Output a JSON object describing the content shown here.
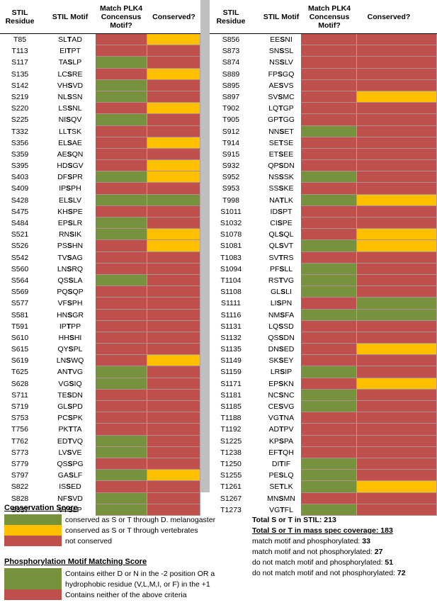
{
  "colors": {
    "green": "#76923c",
    "yellow": "#ffc000",
    "red": "#c0504d"
  },
  "headers": {
    "residue": "STIL Residue",
    "motif": "STIL Motif",
    "match": "Match PLK4 Concensus Motif?",
    "conserved": "Conserved?"
  },
  "left_rows": [
    {
      "r": "T85",
      "m": [
        "SL",
        "T",
        "AD"
      ],
      "a": "r",
      "b": "y"
    },
    {
      "r": "T113",
      "m": [
        "EI",
        "T",
        "PT"
      ],
      "a": "r",
      "b": "r"
    },
    {
      "r": "S117",
      "m": [
        "TA",
        "S",
        "LP"
      ],
      "a": "g",
      "b": "r"
    },
    {
      "r": "S135",
      "m": [
        "LC",
        "S",
        "RE"
      ],
      "a": "r",
      "b": "y"
    },
    {
      "r": "S142",
      "m": [
        "VH",
        "S",
        "VD"
      ],
      "a": "g",
      "b": "r"
    },
    {
      "r": "S219",
      "m": [
        "NL",
        "S",
        "SN"
      ],
      "a": "g",
      "b": "r"
    },
    {
      "r": "S220",
      "m": [
        "LS",
        "S",
        "NL"
      ],
      "a": "r",
      "b": "y"
    },
    {
      "r": "S225",
      "m": [
        "NI",
        "S",
        "QV"
      ],
      "a": "g",
      "b": "r"
    },
    {
      "r": "T332",
      "m": [
        "LL",
        "T",
        "SK"
      ],
      "a": "r",
      "b": "r"
    },
    {
      "r": "S356",
      "m": [
        "EL",
        "S",
        "AE"
      ],
      "a": "r",
      "b": "y"
    },
    {
      "r": "S359",
      "m": [
        "AE",
        "S",
        "QN"
      ],
      "a": "r",
      "b": "r"
    },
    {
      "r": "S395",
      "m": [
        "HD",
        "S",
        "GV"
      ],
      "a": "r",
      "b": "y"
    },
    {
      "r": "S403",
      "m": [
        "DF",
        "S",
        "PR"
      ],
      "a": "g",
      "b": "y"
    },
    {
      "r": "S409",
      "m": [
        "IP",
        "S",
        "PH"
      ],
      "a": "r",
      "b": "r"
    },
    {
      "r": "S428",
      "m": [
        "EL",
        "S",
        "LV"
      ],
      "a": "g",
      "b": "g"
    },
    {
      "r": "S475",
      "m": [
        "KH",
        "S",
        "PE"
      ],
      "a": "r",
      "b": "r"
    },
    {
      "r": "S484",
      "m": [
        "EP",
        "S",
        "LR"
      ],
      "a": "g",
      "b": "r"
    },
    {
      "r": "S521",
      "m": [
        "RN",
        "S",
        "IK"
      ],
      "a": "g",
      "b": "y"
    },
    {
      "r": "S526",
      "m": [
        "PS",
        "S",
        "HN"
      ],
      "a": "r",
      "b": "y"
    },
    {
      "r": "S542",
      "m": [
        "TV",
        "S",
        "AG"
      ],
      "a": "r",
      "b": "r"
    },
    {
      "r": "S560",
      "m": [
        "LN",
        "S",
        "RQ"
      ],
      "a": "r",
      "b": "r"
    },
    {
      "r": "S564",
      "m": [
        "QS",
        "S",
        "LA"
      ],
      "a": "g",
      "b": "r"
    },
    {
      "r": "S569",
      "m": [
        "PQ",
        "S",
        "QP"
      ],
      "a": "r",
      "b": "r"
    },
    {
      "r": "S577",
      "m": [
        "VF",
        "S",
        "PH"
      ],
      "a": "r",
      "b": "r"
    },
    {
      "r": "S581",
      "m": [
        "HN",
        "S",
        "GR"
      ],
      "a": "r",
      "b": "r"
    },
    {
      "r": "T591",
      "m": [
        "IP",
        "T",
        "PP"
      ],
      "a": "r",
      "b": "r"
    },
    {
      "r": "S610",
      "m": [
        "HH",
        "S",
        "HI"
      ],
      "a": "r",
      "b": "r"
    },
    {
      "r": "S615",
      "m": [
        "QY",
        "S",
        "PL"
      ],
      "a": "r",
      "b": "r"
    },
    {
      "r": "S619",
      "m": [
        "LN",
        "S",
        "WQ"
      ],
      "a": "r",
      "b": "y"
    },
    {
      "r": "T625",
      "m": [
        "AN",
        "T",
        "VG"
      ],
      "a": "g",
      "b": "r"
    },
    {
      "r": "S628",
      "m": [
        "VG",
        "S",
        "IQ"
      ],
      "a": "g",
      "b": "r"
    },
    {
      "r": "S711",
      "m": [
        "TE",
        "S",
        "DN"
      ],
      "a": "r",
      "b": "r"
    },
    {
      "r": "S719",
      "m": [
        "GL",
        "S",
        "PD"
      ],
      "a": "r",
      "b": "r"
    },
    {
      "r": "S753",
      "m": [
        "PC",
        "S",
        "PK"
      ],
      "a": "r",
      "b": "r"
    },
    {
      "r": "T756",
      "m": [
        "PK",
        "T",
        "TA"
      ],
      "a": "r",
      "b": "r"
    },
    {
      "r": "T762",
      "m": [
        "ED",
        "T",
        "VQ"
      ],
      "a": "g",
      "b": "r"
    },
    {
      "r": "S773",
      "m": [
        "LV",
        "S",
        "VE"
      ],
      "a": "g",
      "b": "r"
    },
    {
      "r": "S779",
      "m": [
        "QS",
        "S",
        "PG"
      ],
      "a": "r",
      "b": "r"
    },
    {
      "r": "S797",
      "m": [
        "GA",
        "S",
        "LF"
      ],
      "a": "g",
      "b": "y"
    },
    {
      "r": "S822",
      "m": [
        "IS",
        "S",
        "ED"
      ],
      "a": "r",
      "b": "r"
    },
    {
      "r": "S828",
      "m": [
        "NF",
        "S",
        "VD"
      ],
      "a": "g",
      "b": "r"
    },
    {
      "r": "S837",
      "m": [
        "VT",
        "S",
        "LP"
      ],
      "a": "g",
      "b": "r"
    }
  ],
  "right_rows": [
    {
      "r": "S856",
      "m": [
        "EE",
        "S",
        "NI"
      ],
      "a": "r",
      "b": "r"
    },
    {
      "r": "S873",
      "m": [
        "SN",
        "S",
        "SL"
      ],
      "a": "r",
      "b": "r"
    },
    {
      "r": "S874",
      "m": [
        "NS",
        "S",
        "LV"
      ],
      "a": "r",
      "b": "r"
    },
    {
      "r": "S889",
      "m": [
        "FP",
        "S",
        "GQ"
      ],
      "a": "r",
      "b": "r"
    },
    {
      "r": "S895",
      "m": [
        "AE",
        "S",
        "VS"
      ],
      "a": "r",
      "b": "r"
    },
    {
      "r": "S897",
      "m": [
        "SV",
        "S",
        "MC"
      ],
      "a": "r",
      "b": "y"
    },
    {
      "r": "T902",
      "m": [
        "LQ",
        "T",
        "GP"
      ],
      "a": "r",
      "b": "r"
    },
    {
      "r": "T905",
      "m": [
        "GP",
        "T",
        "GG"
      ],
      "a": "r",
      "b": "r"
    },
    {
      "r": "S912",
      "m": [
        "NN",
        "S",
        "ET"
      ],
      "a": "g",
      "b": "r"
    },
    {
      "r": "T914",
      "m": [
        "SE",
        "T",
        "SE"
      ],
      "a": "r",
      "b": "r"
    },
    {
      "r": "S915",
      "m": [
        "ET",
        "S",
        "EE"
      ],
      "a": "r",
      "b": "r"
    },
    {
      "r": "S932",
      "m": [
        "QP",
        "S",
        "DN"
      ],
      "a": "r",
      "b": "r"
    },
    {
      "r": "S952",
      "m": [
        "NS",
        "S",
        "SK"
      ],
      "a": "g",
      "b": "r"
    },
    {
      "r": "S953",
      "m": [
        "SS",
        "S",
        "KE"
      ],
      "a": "r",
      "b": "r"
    },
    {
      "r": "T998",
      "m": [
        "NA",
        "T",
        "LK"
      ],
      "a": "g",
      "b": "y"
    },
    {
      "r": "S1011",
      "m": [
        "ID",
        "S",
        "PT"
      ],
      "a": "r",
      "b": "r"
    },
    {
      "r": "S1032",
      "m": [
        "CI",
        "S",
        "PE"
      ],
      "a": "r",
      "b": "r"
    },
    {
      "r": "S1078",
      "m": [
        "QL",
        "S",
        "QL"
      ],
      "a": "r",
      "b": "y"
    },
    {
      "r": "S1081",
      "m": [
        "QL",
        "S",
        "VT"
      ],
      "a": "g",
      "b": "y"
    },
    {
      "r": "T1083",
      "m": [
        "SV",
        "T",
        "RS"
      ],
      "a": "r",
      "b": "r"
    },
    {
      "r": "S1094",
      "m": [
        "PF",
        "S",
        "LL"
      ],
      "a": "g",
      "b": "r"
    },
    {
      "r": "T1104",
      "m": [
        "RS",
        "T",
        "VG"
      ],
      "a": "g",
      "b": "r"
    },
    {
      "r": "S1108",
      "m": [
        "GL",
        "S",
        "LI"
      ],
      "a": "g",
      "b": "r"
    },
    {
      "r": "S1111",
      "m": [
        "LI",
        "S",
        "PN"
      ],
      "a": "r",
      "b": "g"
    },
    {
      "r": "S1116",
      "m": [
        "NM",
        "S",
        "FA"
      ],
      "a": "g",
      "b": "g"
    },
    {
      "r": "S1131",
      "m": [
        "LQ",
        "S",
        "SD"
      ],
      "a": "r",
      "b": "r"
    },
    {
      "r": "S1132",
      "m": [
        "QS",
        "S",
        "DN"
      ],
      "a": "r",
      "b": "r"
    },
    {
      "r": "S1135",
      "m": [
        "DN",
        "S",
        "ED"
      ],
      "a": "r",
      "b": "y"
    },
    {
      "r": "S1149",
      "m": [
        "SK",
        "S",
        "EY"
      ],
      "a": "r",
      "b": "r"
    },
    {
      "r": "S1159",
      "m": [
        "LR",
        "S",
        "IP"
      ],
      "a": "g",
      "b": "r"
    },
    {
      "r": "S1171",
      "m": [
        "EP",
        "S",
        "KN"
      ],
      "a": "r",
      "b": "y"
    },
    {
      "r": "S1181",
      "m": [
        "NC",
        "S",
        "NC"
      ],
      "a": "g",
      "b": "r"
    },
    {
      "r": "S1185",
      "m": [
        "CE",
        "S",
        "VG"
      ],
      "a": "g",
      "b": "r"
    },
    {
      "r": "T1188",
      "m": [
        "VG",
        "T",
        "NA"
      ],
      "a": "r",
      "b": "r"
    },
    {
      "r": "T1192",
      "m": [
        "AD",
        "T",
        "PV"
      ],
      "a": "r",
      "b": "r"
    },
    {
      "r": "S1225",
      "m": [
        "KP",
        "S",
        "PA"
      ],
      "a": "r",
      "b": "r"
    },
    {
      "r": "T1238",
      "m": [
        "EF",
        "T",
        "QH"
      ],
      "a": "r",
      "b": "r"
    },
    {
      "r": "T1250",
      "m": [
        "DI",
        "T",
        "IF"
      ],
      "a": "g",
      "b": "r"
    },
    {
      "r": "S1255",
      "m": [
        "PE",
        "S",
        "LQ"
      ],
      "a": "g",
      "b": "r"
    },
    {
      "r": "T1261",
      "m": [
        "SE",
        "T",
        "LK"
      ],
      "a": "g",
      "b": "y"
    },
    {
      "r": "S1267",
      "m": [
        "MN",
        "S",
        "MN"
      ],
      "a": "r",
      "b": "r"
    },
    {
      "r": "T1273",
      "m": [
        "VG",
        "T",
        "FL"
      ],
      "a": "g",
      "b": "r"
    }
  ],
  "legend": {
    "conservation_title": "Conservation Score",
    "conservation_items": [
      {
        "color": "green",
        "label": "conserved as S or T through D. melanogaster"
      },
      {
        "color": "yellow",
        "label": "conserved as S or T through vertebrates"
      },
      {
        "color": "red",
        "label": "not conserved"
      }
    ],
    "phospho_title": "Phosphorylation Motif Matching Score",
    "phospho_green_line1": "Contains either D or N in the -2 position OR a",
    "phospho_green_line2": "hydrophobic residue (V,L,M,I, or F) in the +1",
    "phospho_red": "Contains neither of the above criteria"
  },
  "totals": {
    "total_label": "Total S or T in STIL: 213",
    "coverage_label": "Total S or T in mass spec coverage: 183",
    "lines": [
      {
        "text": "match motif and phosphorylated: ",
        "value": "33"
      },
      {
        "text": "match motif and not phosphorylated: ",
        "value": "27"
      },
      {
        "text": "do not match motif and phosphorylated: ",
        "value": "51"
      },
      {
        "text": "do not match motif and not phosphorylated: ",
        "value": "72"
      }
    ]
  }
}
